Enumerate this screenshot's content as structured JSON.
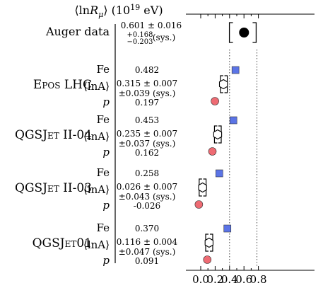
{
  "chart_data": {
    "type": "scatter",
    "title": "⟨ln R_μ⟩ (10^19 eV)",
    "title_parts": {
      "open": "⟨ln",
      "sym": "R",
      "sub": "μ",
      "close": "⟩ (10",
      "exp": "19",
      "unit": " eV)"
    },
    "xlim": [
      -0.1,
      0.9
    ],
    "xticks": [
      0.0,
      0.2,
      0.4,
      0.6,
      0.8
    ],
    "xtick_labels": [
      "0.0",
      "0.2",
      "0.4",
      "0.6",
      "0.8"
    ],
    "dotted_lines": [
      0.4,
      0.78
    ],
    "auger": {
      "label": "Auger data",
      "value": 0.601,
      "value_text": "0.601 ± 0.016",
      "sys_plus": "+0.168",
      "sys_minus": "−0.203",
      "sys_suffix": "(sys.)",
      "sys_low": 0.398,
      "sys_high": 0.769
    },
    "models": [
      {
        "name_parts": [
          "E",
          "POS",
          " LHC"
        ],
        "row_labels": {
          "fe": "Fe",
          "lnA": "⟨lnA⟩",
          "p": "p"
        },
        "fe": 0.482,
        "fe_text": "0.482",
        "p": 0.197,
        "p_text": "0.197",
        "lnA": 0.315,
        "lnA_text": "0.315 ± 0.007",
        "lnA_sys_text": "±0.039 (sys.)",
        "lnA_marker_text": "⬡",
        "lnA_sys_low": 0.303,
        "lnA_sys_high": 0.339
      },
      {
        "name_parts": [
          "QGSJ",
          "ET",
          " II-04"
        ],
        "row_labels": {
          "fe": "Fe",
          "lnA": "⟨lnA⟩",
          "p": "p"
        },
        "fe": 0.453,
        "fe_text": "0.453",
        "p": 0.162,
        "p_text": "0.162",
        "lnA": 0.235,
        "lnA_text": "0.235 ± 0.007",
        "lnA_sys_text": "±0.037 (sys.)",
        "lnA_marker_text": "⬡",
        "lnA_sys_low": 0.22,
        "lnA_sys_high": 0.255
      },
      {
        "name_parts": [
          "QGSJ",
          "ET",
          " II-03"
        ],
        "row_labels": {
          "fe": "Fe",
          "lnA": "⟨lnA⟩",
          "p": "p"
        },
        "fe": 0.258,
        "fe_text": "0.258",
        "p": -0.026,
        "p_text": "-0.026",
        "lnA": 0.026,
        "lnA_text": "0.026 ± 0.007",
        "lnA_sys_text": "±0.043 (sys.)",
        "lnA_marker_text": "⬡",
        "lnA_sys_low": 0.008,
        "lnA_sys_high": 0.045
      },
      {
        "name_parts": [
          "QGSJ",
          "ET",
          "01"
        ],
        "row_labels": {
          "fe": "Fe",
          "lnA": "⟨lnA⟩",
          "p": "p"
        },
        "fe": 0.37,
        "fe_text": "0.370",
        "p": 0.091,
        "p_text": "0.091",
        "lnA": 0.116,
        "lnA_text": "0.116 ± 0.004",
        "lnA_sys_text": "±0.047 (sys.)",
        "lnA_marker_text": "⬡",
        "lnA_sys_low": 0.098,
        "lnA_sys_high": 0.137
      }
    ]
  },
  "colors": {
    "fe_marker": "#5b74e6",
    "p_marker": "#ee6b73",
    "auger_marker": "#000000",
    "axis": "#000000"
  }
}
